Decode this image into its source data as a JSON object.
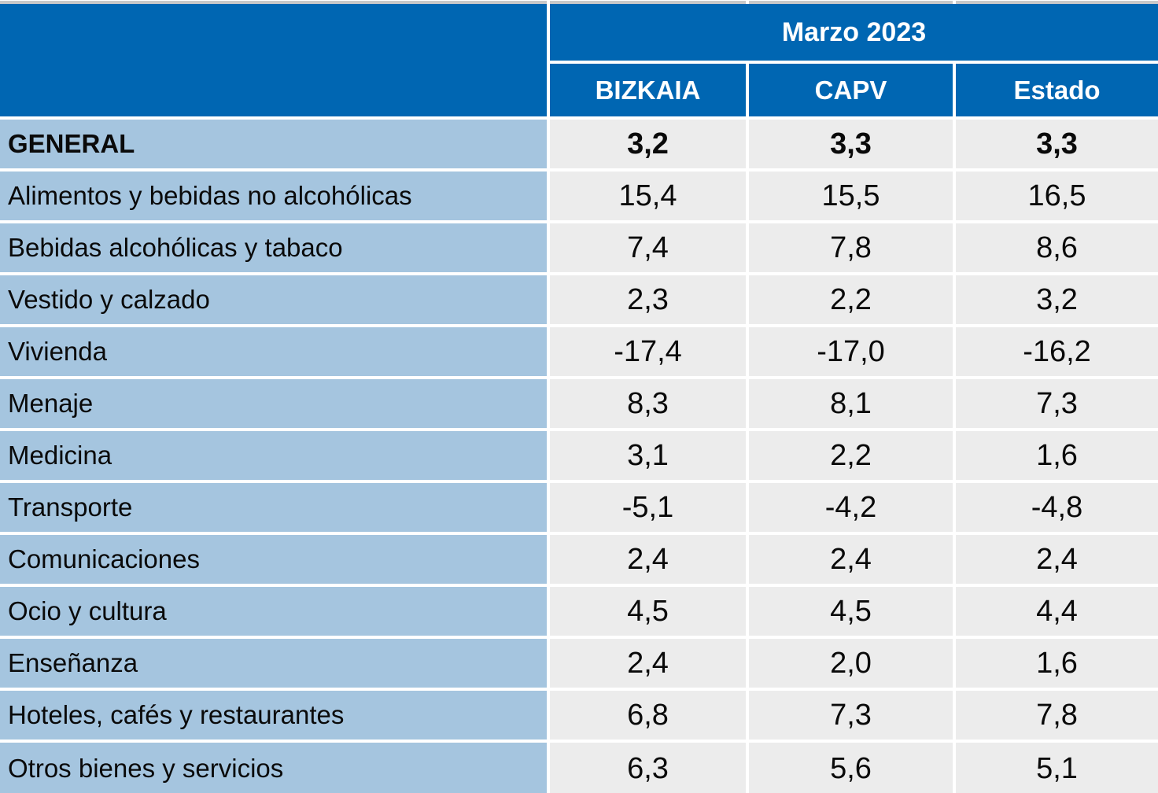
{
  "table": {
    "period_header": "Marzo 2023",
    "columns": [
      "BIZKAIA",
      "CAPV",
      "Estado"
    ],
    "rows": [
      {
        "label": "GENERAL",
        "values": [
          "3,2",
          "3,3",
          "3,3"
        ]
      },
      {
        "label": "Alimentos y bebidas no alcohólicas",
        "values": [
          "15,4",
          "15,5",
          "16,5"
        ]
      },
      {
        "label": "Bebidas alcohólicas y tabaco",
        "values": [
          "7,4",
          "7,8",
          "8,6"
        ]
      },
      {
        "label": "Vestido y calzado",
        "values": [
          "2,3",
          "2,2",
          "3,2"
        ]
      },
      {
        "label": "Vivienda",
        "values": [
          "-17,4",
          "-17,0",
          "-16,2"
        ]
      },
      {
        "label": "Menaje",
        "values": [
          "8,3",
          "8,1",
          "7,3"
        ]
      },
      {
        "label": "Medicina",
        "values": [
          "3,1",
          "2,2",
          "1,6"
        ]
      },
      {
        "label": "Transporte",
        "values": [
          "-5,1",
          "-4,2",
          "-4,8"
        ]
      },
      {
        "label": "Comunicaciones",
        "values": [
          "2,4",
          "2,4",
          "2,4"
        ]
      },
      {
        "label": "Ocio y cultura",
        "values": [
          "4,5",
          "4,5",
          "4,4"
        ]
      },
      {
        "label": "Enseñanza",
        "values": [
          "2,4",
          "2,0",
          "1,6"
        ]
      },
      {
        "label": "Hoteles, cafés y restaurantes",
        "values": [
          "6,8",
          "7,3",
          "7,8"
        ]
      },
      {
        "label": "Otros bienes y servicios",
        "values": [
          "6,3",
          "5,6",
          "5,1"
        ]
      }
    ]
  },
  "colors": {
    "header_blue": "#0066b2",
    "label_blue": "#a5c5df",
    "cell_gray": "#ececec",
    "strip_gray": "#c9c9c9"
  },
  "chart_data": {
    "type": "table",
    "title": "Marzo 2023",
    "columns": [
      "BIZKAIA",
      "CAPV",
      "Estado"
    ],
    "categories": [
      "GENERAL",
      "Alimentos y bebidas no alcohólicas",
      "Bebidas alcohólicas y tabaco",
      "Vestido y calzado",
      "Vivienda",
      "Menaje",
      "Medicina",
      "Transporte",
      "Comunicaciones",
      "Ocio y cultura",
      "Enseñanza",
      "Hoteles, cafés y restaurantes",
      "Otros bienes y servicios"
    ],
    "series": [
      {
        "name": "BIZKAIA",
        "values": [
          3.2,
          15.4,
          7.4,
          2.3,
          -17.4,
          8.3,
          3.1,
          -5.1,
          2.4,
          4.5,
          2.4,
          6.8,
          6.3
        ]
      },
      {
        "name": "CAPV",
        "values": [
          3.3,
          15.5,
          7.8,
          2.2,
          -17.0,
          8.1,
          2.2,
          -4.2,
          2.4,
          4.5,
          2.0,
          7.3,
          5.6
        ]
      },
      {
        "name": "Estado",
        "values": [
          3.3,
          16.5,
          8.6,
          3.2,
          -16.2,
          7.3,
          1.6,
          -4.8,
          2.4,
          4.4,
          1.6,
          7.8,
          5.1
        ]
      }
    ]
  }
}
